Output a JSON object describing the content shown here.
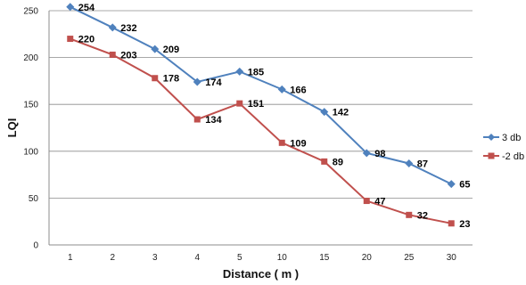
{
  "chart_data": {
    "type": "line",
    "title": "",
    "xlabel": "Distance ( m )",
    "ylabel": "LQI",
    "categories": [
      "1",
      "2",
      "3",
      "4",
      "5",
      "10",
      "15",
      "20",
      "25",
      "30"
    ],
    "ylim": [
      0,
      250
    ],
    "yticks": [
      0,
      50,
      100,
      150,
      200,
      250
    ],
    "grid": true,
    "legend_position": "right",
    "series": [
      {
        "name": "3 db",
        "color": "#4F81BD",
        "marker": "diamond",
        "values": [
          254,
          232,
          209,
          174,
          185,
          166,
          142,
          98,
          87,
          65
        ]
      },
      {
        "name": "-2 db",
        "color": "#C0504D",
        "marker": "square",
        "values": [
          220,
          203,
          178,
          134,
          151,
          109,
          89,
          47,
          32,
          23
        ]
      }
    ]
  }
}
